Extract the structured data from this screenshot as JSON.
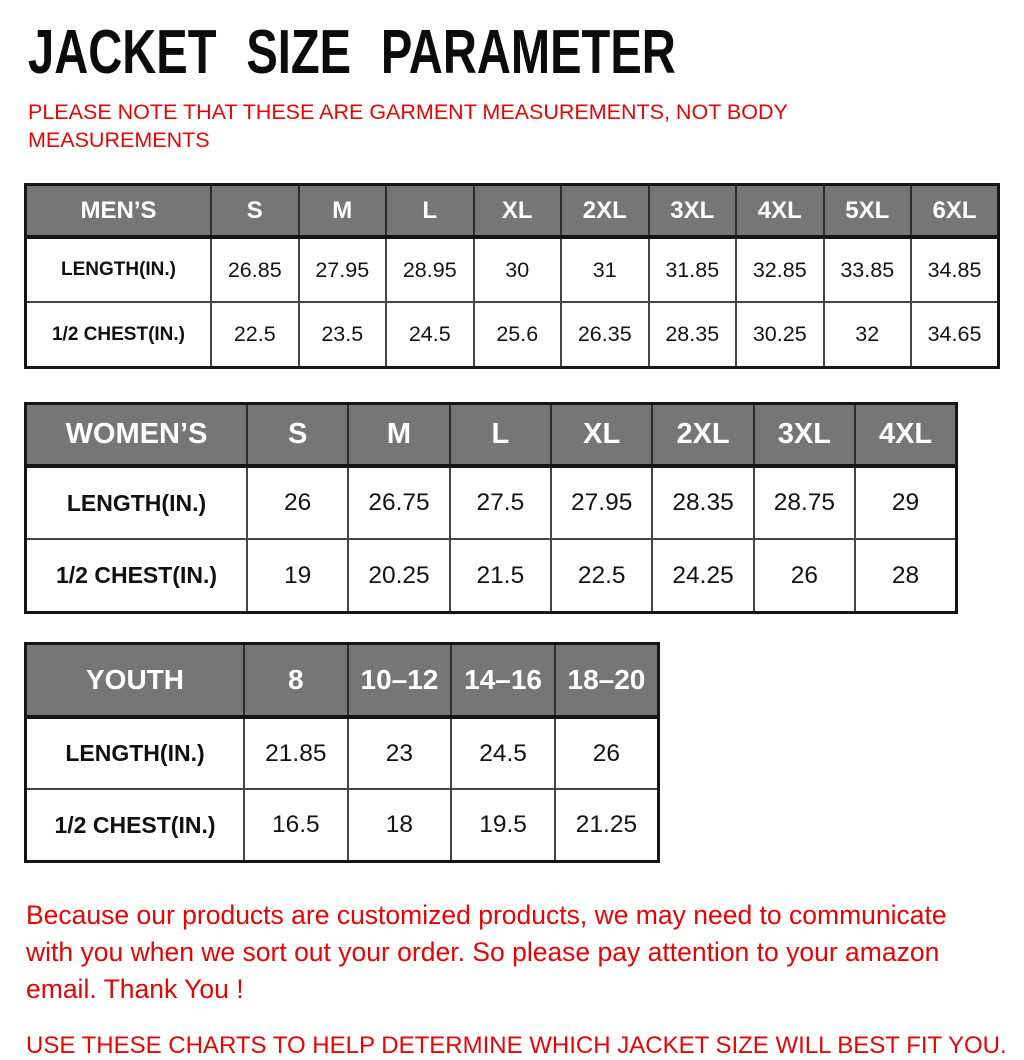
{
  "page": {
    "title": "JACKET SIZE PARAMETER",
    "note": "PLEASE NOTE THAT THESE ARE GARMENT MEASUREMENTS, NOT BODY MEASUREMENTS",
    "footer_line1": "Because our products are customized products, we may need to communicate with you when we sort out your order. So please pay attention to your amazon email. Thank You !",
    "footer_line2": "USE THESE CHARTS TO HELP DETERMINE WHICH JACKET SIZE WILL BEST FIT YOU."
  },
  "colors": {
    "accent_red": "#e60505",
    "header_gray": "#767676",
    "header_text": "#ffffff",
    "border_dark": "#151515",
    "title_black": "#0c0c0c"
  },
  "chart_data": [
    {
      "type": "table",
      "name": "mens",
      "title": "MEN’S",
      "columns": [
        "MEN’S",
        "S",
        "M",
        "L",
        "XL",
        "2XL",
        "3XL",
        "4XL",
        "5XL",
        "6XL"
      ],
      "rows": [
        {
          "label": "LENGTH(IN.)",
          "values": [
            "26.85",
            "27.95",
            "28.95",
            "30",
            "31",
            "31.85",
            "32.85",
            "33.85",
            "34.85"
          ]
        },
        {
          "label": "1/2 CHEST(IN.)",
          "values": [
            "22.5",
            "23.5",
            "24.5",
            "25.6",
            "26.35",
            "28.35",
            "30.25",
            "32",
            "34.65"
          ]
        }
      ]
    },
    {
      "type": "table",
      "name": "womens",
      "title": "WOMEN’S",
      "columns": [
        "WOMEN’S",
        "S",
        "M",
        "L",
        "XL",
        "2XL",
        "3XL",
        "4XL"
      ],
      "rows": [
        {
          "label": "LENGTH(IN.)",
          "values": [
            "26",
            "26.75",
            "27.5",
            "27.95",
            "28.35",
            "28.75",
            "29"
          ]
        },
        {
          "label": "1/2 CHEST(IN.)",
          "values": [
            "19",
            "20.25",
            "21.5",
            "22.5",
            "24.25",
            "26",
            "28"
          ]
        }
      ]
    },
    {
      "type": "table",
      "name": "youth",
      "title": "YOUTH",
      "columns": [
        "YOUTH",
        "8",
        "10–12",
        "14–16",
        "18–20"
      ],
      "rows": [
        {
          "label": "LENGTH(IN.)",
          "values": [
            "21.85",
            "23",
            "24.5",
            "26"
          ]
        },
        {
          "label": "1/2 CHEST(IN.)",
          "values": [
            "16.5",
            "18",
            "19.5",
            "21.25"
          ]
        }
      ]
    }
  ]
}
